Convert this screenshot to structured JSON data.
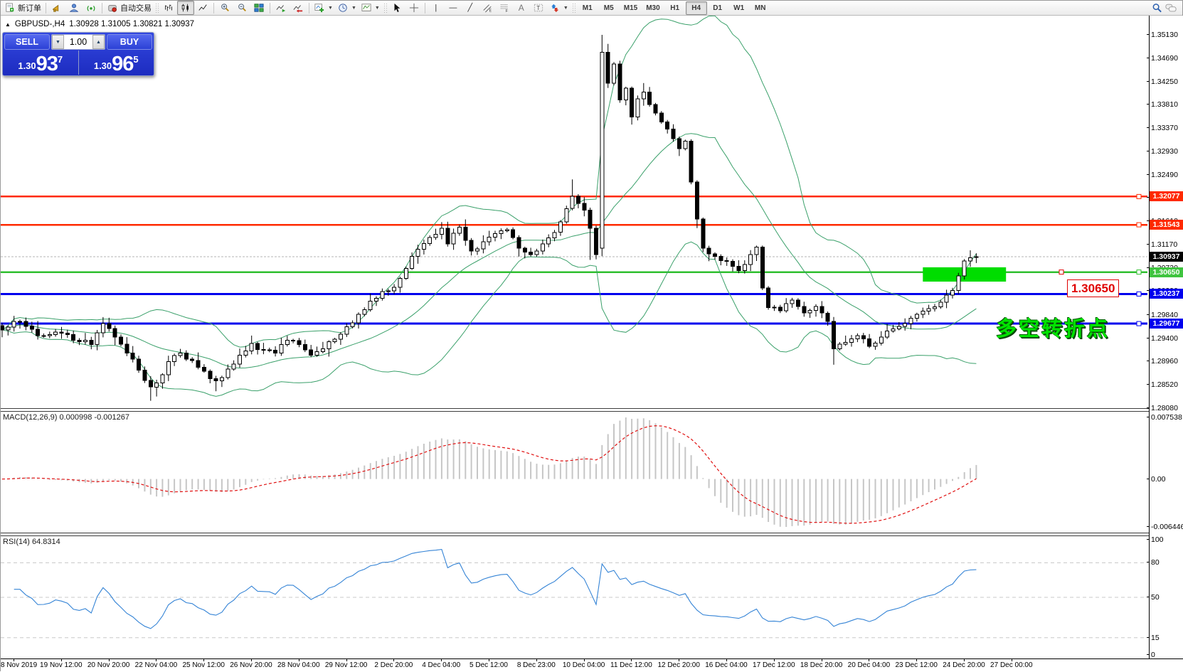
{
  "toolbar": {
    "new_order": "新订单",
    "autotrading": "自动交易",
    "timeframes": [
      "M1",
      "M5",
      "M15",
      "M30",
      "H1",
      "H4",
      "D1",
      "W1",
      "MN"
    ],
    "active_timeframe": "H4"
  },
  "header": {
    "symbol": "GBPUSD-,H4",
    "ohlc": "1.30928 1.31005 1.30821 1.30937"
  },
  "order_panel": {
    "sell": "SELL",
    "buy": "BUY",
    "volume": "1.00",
    "sell_price": {
      "prefix": "1.30",
      "big": "93",
      "sup": "7"
    },
    "buy_price": {
      "prefix": "1.30",
      "big": "96",
      "sup": "5"
    }
  },
  "price_scale": {
    "ticks": [
      "1.35130",
      "1.34690",
      "1.34250",
      "1.33810",
      "1.33370",
      "1.32930",
      "1.32490",
      "1.32050",
      "1.31610",
      "1.31170",
      "1.30730",
      "1.30290",
      "1.29840",
      "1.29400",
      "1.28960",
      "1.28520",
      "1.28080"
    ]
  },
  "lines": [
    {
      "value": 1.32077,
      "text": "1.32077",
      "color": "#ff2a00",
      "bg": "#ff2a00",
      "width": 2.4,
      "bid": false
    },
    {
      "value": 1.31543,
      "text": "1.31543",
      "color": "#ff2a00",
      "bg": "#ff2a00",
      "width": 2.4,
      "bid": false
    },
    {
      "value": 1.30937,
      "text": "1.30937",
      "color": "#b4b4b4",
      "bg": "#000000",
      "width": 1,
      "bid": true
    },
    {
      "value": 1.3065,
      "text": "1.30650",
      "color": "#2fbf2f",
      "bg": "#3fc43f",
      "width": 2.4,
      "bid": false
    },
    {
      "value": 1.30237,
      "text": "1.30237",
      "color": "#0000ee",
      "bg": "#0000ee",
      "width": 2.8,
      "bid": false
    },
    {
      "value": 1.29677,
      "text": "1.29677",
      "color": "#0000ee",
      "bg": "#0000ee",
      "width": 2.8,
      "bid": false
    }
  ],
  "macd": {
    "label": "MACD(12,26,9) 0.000998 -0.001267",
    "scale_max": "0.007538",
    "scale_zero": "0.00",
    "scale_min": "-0.006446"
  },
  "rsi": {
    "label": "RSI(14) 64.8314",
    "levels": [
      100,
      80,
      50,
      15,
      0
    ],
    "dashed_levels": [
      80,
      50,
      15
    ]
  },
  "time_axis": [
    "8 Nov 2019",
    "19 Nov 12:00",
    "20 Nov 20:00",
    "22 Nov 04:00",
    "25 Nov 12:00",
    "26 Nov 20:00",
    "28 Nov 04:00",
    "29 Nov 12:00",
    "2 Dec 20:00",
    "4 Dec 04:00",
    "5 Dec 12:00",
    "8 Dec 23:00",
    "10 Dec 04:00",
    "11 Dec 12:00",
    "12 Dec 20:00",
    "16 Dec 04:00",
    "17 Dec 12:00",
    "18 Dec 20:00",
    "20 Dec 04:00",
    "23 Dec 12:00",
    "24 Dec 20:00",
    "27 Dec 00:00"
  ],
  "annotations": {
    "price_box": "1.30650",
    "note": "多空转折点",
    "highlight": {
      "start_index": 155,
      "end_index": 169,
      "top_price": 1.3074,
      "bottom_price": 1.3047,
      "color": "#00dd00"
    }
  },
  "chart_data": {
    "type": "candlestick",
    "symbol": "GBPUSD-",
    "period": "H4",
    "current": {
      "open": 1.30928,
      "high": 1.31005,
      "low": 1.30821,
      "close": 1.30937
    },
    "bid": 1.30937,
    "candle_count": 165,
    "ylim": [
      1.2802,
      1.3549
    ],
    "hlines": [
      1.32077,
      1.31543,
      1.3065,
      1.30237,
      1.29677
    ],
    "indicators": {
      "bollinger": {
        "period": 20,
        "deviation": 2
      },
      "macd": {
        "fast": 12,
        "slow": 26,
        "signal": 9,
        "last_main": 0.000998,
        "last_signal": -0.001267,
        "scale": [
          0.007538,
          -0.006446
        ]
      },
      "rsi": {
        "period": 14,
        "last": 64.8314
      }
    },
    "close_keypoints": [
      [
        0,
        1.2956
      ],
      [
        3,
        1.2972
      ],
      [
        6,
        1.2945
      ],
      [
        9,
        1.2952
      ],
      [
        12,
        1.2936
      ],
      [
        15,
        1.2928
      ],
      [
        17,
        1.2968
      ],
      [
        19,
        1.2942
      ],
      [
        21,
        1.2912
      ],
      [
        23,
        1.288
      ],
      [
        25,
        1.2848
      ],
      [
        26,
        1.2856
      ],
      [
        28,
        1.2896
      ],
      [
        30,
        1.2912
      ],
      [
        32,
        1.2898
      ],
      [
        34,
        1.2878
      ],
      [
        36,
        1.286
      ],
      [
        38,
        1.2882
      ],
      [
        40,
        1.2908
      ],
      [
        42,
        1.293
      ],
      [
        44,
        1.2918
      ],
      [
        46,
        1.2912
      ],
      [
        48,
        1.2936
      ],
      [
        50,
        1.2928
      ],
      [
        52,
        1.2908
      ],
      [
        54,
        1.292
      ],
      [
        56,
        1.2938
      ],
      [
        58,
        1.2962
      ],
      [
        60,
        1.2985
      ],
      [
        62,
        1.301
      ],
      [
        64,
        1.3028
      ],
      [
        66,
        1.3036
      ],
      [
        68,
        1.3072
      ],
      [
        70,
        1.3108
      ],
      [
        72,
        1.313
      ],
      [
        74,
        1.3148
      ],
      [
        75,
        1.3118
      ],
      [
        77,
        1.315
      ],
      [
        79,
        1.3105
      ],
      [
        81,
        1.3122
      ],
      [
        83,
        1.3138
      ],
      [
        85,
        1.3145
      ],
      [
        87,
        1.311
      ],
      [
        89,
        1.3098
      ],
      [
        91,
        1.3118
      ],
      [
        93,
        1.314
      ],
      [
        95,
        1.3185
      ],
      [
        96,
        1.3208
      ],
      [
        97,
        1.3195
      ],
      [
        98,
        1.3182
      ],
      [
        99,
        1.3148
      ],
      [
        100,
        1.3098
      ],
      [
        101,
        1.348
      ],
      [
        102,
        1.3422
      ],
      [
        103,
        1.3458
      ],
      [
        104,
        1.339
      ],
      [
        105,
        1.3412
      ],
      [
        106,
        1.3358
      ],
      [
        107,
        1.3392
      ],
      [
        108,
        1.3405
      ],
      [
        110,
        1.3365
      ],
      [
        112,
        1.3335
      ],
      [
        114,
        1.3298
      ],
      [
        115,
        1.3312
      ],
      [
        116,
        1.3235
      ],
      [
        117,
        1.3165
      ],
      [
        118,
        1.311
      ],
      [
        120,
        1.3095
      ],
      [
        122,
        1.3085
      ],
      [
        124,
        1.3068
      ],
      [
        126,
        1.3098
      ],
      [
        127,
        1.3112
      ],
      [
        128,
        1.3035
      ],
      [
        129,
        1.2998
      ],
      [
        131,
        1.2992
      ],
      [
        133,
        1.3012
      ],
      [
        135,
        1.2988
      ],
      [
        137,
        1.3
      ],
      [
        139,
        1.2972
      ],
      [
        140,
        1.292
      ],
      [
        142,
        1.2932
      ],
      [
        144,
        1.2945
      ],
      [
        146,
        1.2925
      ],
      [
        148,
        1.2942
      ],
      [
        150,
        1.2958
      ],
      [
        152,
        1.2968
      ],
      [
        154,
        1.2985
      ],
      [
        156,
        1.2996
      ],
      [
        158,
        1.3008
      ],
      [
        160,
        1.303
      ],
      [
        162,
        1.3086
      ],
      [
        163,
        1.3092
      ],
      [
        164,
        1.30937
      ]
    ],
    "exact_indices": [
      101,
      164
    ],
    "wick_overrides": {
      "25": [
        null,
        1.2822
      ],
      "26": [
        null,
        1.283
      ],
      "36": [
        null,
        1.284
      ],
      "37": [
        null,
        1.2848
      ],
      "96": [
        1.324,
        null
      ],
      "99": [
        null,
        1.3088
      ],
      "108": [
        1.3422,
        null
      ],
      "117": [
        null,
        1.3148
      ],
      "140": [
        null,
        1.289
      ]
    },
    "ohlc_overrides": {
      "101": [
        1.311,
        1.3513,
        1.3095,
        1.348
      ],
      "164": [
        1.30928,
        1.31005,
        1.30821,
        1.30937
      ]
    }
  },
  "colors": {
    "bull": "#ffffff",
    "bear": "#000000",
    "outline": "#000000",
    "bollinger": "#3aa06a",
    "macd_hist": "#c6c6c6",
    "macd_signal": "#e01010",
    "rsi_line": "#3584d6",
    "level_dash": "#c8c8c8",
    "bid_line": "#b4b4b4"
  }
}
